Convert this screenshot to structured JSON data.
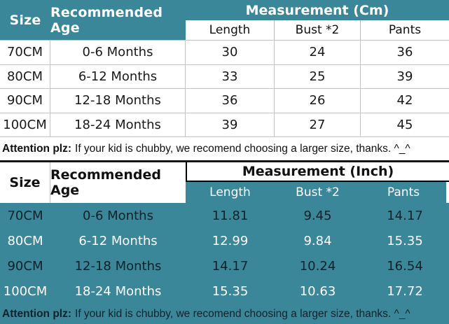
{
  "colors": {
    "teal": "#3A8799",
    "grid": "#c4c4c4",
    "separator": "#141414",
    "header_text_top": "#ffffff",
    "header_text_bottom": "#111111"
  },
  "cm_table": {
    "size_header": "Size",
    "age_header": "Recommended Age",
    "measurement_header": "Measurement (Cm)",
    "columns": [
      "Length",
      "Bust *2",
      "Pants"
    ],
    "rows": [
      {
        "size": "70CM",
        "age": "0-6 Months",
        "values": [
          "30",
          "24",
          "36"
        ]
      },
      {
        "size": "80CM",
        "age": "6-12 Months",
        "values": [
          "33",
          "25",
          "39"
        ]
      },
      {
        "size": "90CM",
        "age": "12-18 Months",
        "values": [
          "36",
          "26",
          "42"
        ]
      },
      {
        "size": "100CM",
        "age": "18-24 Months",
        "values": [
          "39",
          "27",
          "45"
        ]
      }
    ],
    "note_label": "Attention plz:",
    "note_text": "If your kid is chubby, we recomend choosing a larger size, thanks. ^_^"
  },
  "inch_table": {
    "size_header": "Size",
    "age_header": "Recommended Age",
    "measurement_header": "Measurement (Inch)",
    "columns": [
      "Length",
      "Bust *2",
      "Pants"
    ],
    "rows": [
      {
        "size": "70CM",
        "age": "0-6 Months",
        "values": [
          "11.81",
          "9.45",
          "14.17"
        ]
      },
      {
        "size": "80CM",
        "age": "6-12 Months",
        "values": [
          "12.99",
          "9.84",
          "15.35"
        ]
      },
      {
        "size": "90CM",
        "age": "12-18 Months",
        "values": [
          "14.17",
          "10.24",
          "16.54"
        ]
      },
      {
        "size": "100CM",
        "age": "18-24 Months",
        "values": [
          "15.35",
          "10.63",
          "17.72"
        ]
      }
    ],
    "note_label": "Attention plz:",
    "note_text": "If your kid is chubby, we recomend choosing a larger size, thanks. ^_^"
  },
  "chart_data": [
    {
      "type": "table",
      "title": "Measurement (Cm)",
      "columns": [
        "Size",
        "Recommended Age",
        "Length",
        "Bust *2",
        "Pants"
      ],
      "rows": [
        [
          "70CM",
          "0-6 Months",
          30,
          24,
          36
        ],
        [
          "80CM",
          "6-12 Months",
          33,
          25,
          39
        ],
        [
          "90CM",
          "12-18 Months",
          36,
          26,
          42
        ],
        [
          "100CM",
          "18-24 Months",
          39,
          27,
          45
        ]
      ],
      "note": "Attention plz: If your kid is chubby, we recomend choosing a larger size, thanks. ^_^"
    },
    {
      "type": "table",
      "title": "Measurement (Inch)",
      "columns": [
        "Size",
        "Recommended Age",
        "Length",
        "Bust *2",
        "Pants"
      ],
      "rows": [
        [
          "70CM",
          "0-6 Months",
          11.81,
          9.45,
          14.17
        ],
        [
          "80CM",
          "6-12 Months",
          12.99,
          9.84,
          15.35
        ],
        [
          "90CM",
          "12-18 Months",
          14.17,
          10.24,
          16.54
        ],
        [
          "100CM",
          "18-24 Months",
          15.35,
          10.63,
          17.72
        ]
      ],
      "note": "Attention plz: If your kid is chubby, we recomend choosing a larger size, thanks. ^_^"
    }
  ]
}
